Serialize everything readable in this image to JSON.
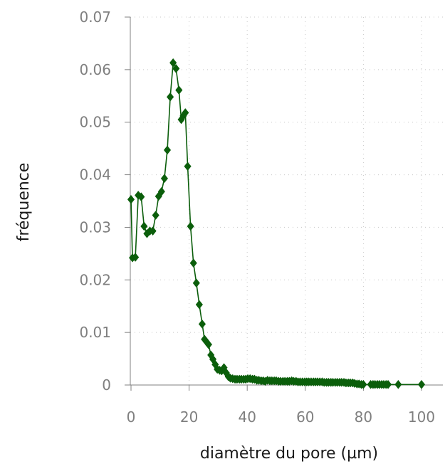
{
  "chart_data": {
    "type": "scatter",
    "title": "",
    "xlabel": "diamètre du pore (µm)",
    "ylabel": "fréquence",
    "xlim": [
      0,
      107
    ],
    "ylim": [
      0,
      0.07
    ],
    "x_ticks": [
      0,
      20,
      40,
      60,
      80,
      100
    ],
    "y_ticks": [
      0,
      0.01,
      0.02,
      0.03,
      0.04,
      0.05,
      0.06,
      0.07
    ],
    "x_tick_labels": [
      "0",
      "20",
      "40",
      "60",
      "80",
      "100"
    ],
    "y_tick_labels": [
      "0",
      "0.01",
      "0.02",
      "0.03",
      "0.04",
      "0.05",
      "0.06",
      "0.07"
    ],
    "grid": "dotted",
    "legend": "none",
    "series": [
      {
        "color": "#0b5e0b",
        "marker": "diamond",
        "line": true,
        "points": [
          [
            0,
            0.0353
          ],
          [
            0.5,
            0.0242
          ],
          [
            1.5,
            0.0243
          ],
          [
            2.5,
            0.0361
          ],
          [
            3.5,
            0.0358
          ],
          [
            4.5,
            0.0302
          ],
          [
            5.5,
            0.0288
          ],
          [
            6.5,
            0.0293
          ],
          [
            7.5,
            0.0293
          ],
          [
            8.5,
            0.0323
          ],
          [
            9.5,
            0.0359
          ],
          [
            10.5,
            0.0368
          ],
          [
            11.5,
            0.0393
          ],
          [
            12.5,
            0.0447
          ],
          [
            13.5,
            0.0548
          ],
          [
            14.5,
            0.0613
          ],
          [
            15.5,
            0.0602
          ],
          [
            16.5,
            0.0561
          ],
          [
            17.3,
            0.0505
          ],
          [
            18,
            0.0512
          ],
          [
            18.7,
            0.0518
          ],
          [
            19.5,
            0.0416
          ],
          [
            20.5,
            0.0302
          ],
          [
            21.5,
            0.0232
          ],
          [
            22.5,
            0.0194
          ],
          [
            23.5,
            0.0153
          ],
          [
            24.5,
            0.0116
          ],
          [
            25.3,
            0.0087
          ],
          [
            26,
            0.0082
          ],
          [
            26.7,
            0.0077
          ],
          [
            27.5,
            0.0057
          ],
          [
            28.2,
            0.0049
          ],
          [
            29,
            0.0039
          ],
          [
            29.7,
            0.003
          ],
          [
            30.5,
            0.0028
          ],
          [
            31.2,
            0.0027
          ],
          [
            32,
            0.0033
          ],
          [
            32.8,
            0.0023
          ],
          [
            33.5,
            0.0016
          ],
          [
            34.2,
            0.0013
          ],
          [
            35,
            0.0012
          ],
          [
            35.8,
            0.0011
          ],
          [
            36.5,
            0.0011
          ],
          [
            37.3,
            0.0011
          ],
          [
            38,
            0.0011
          ],
          [
            38.8,
            0.0011
          ],
          [
            39.5,
            0.0011
          ],
          [
            40.2,
            0.0012
          ],
          [
            41,
            0.0012
          ],
          [
            41.8,
            0.0011
          ],
          [
            42.5,
            0.0011
          ],
          [
            43.3,
            0.0009
          ],
          [
            44,
            0.0009
          ],
          [
            44.8,
            0.0008
          ],
          [
            45.5,
            0.0008
          ],
          [
            46.2,
            0.0007
          ],
          [
            47,
            0.0009
          ],
          [
            47.8,
            0.0008
          ],
          [
            48.5,
            0.0008
          ],
          [
            49.3,
            0.0008
          ],
          [
            50,
            0.0008
          ],
          [
            50.8,
            0.0007
          ],
          [
            51.5,
            0.0007
          ],
          [
            52.3,
            0.0007
          ],
          [
            53,
            0.0007
          ],
          [
            53.8,
            0.0007
          ],
          [
            54.5,
            0.0007
          ],
          [
            55.3,
            0.0008
          ],
          [
            56,
            0.0007
          ],
          [
            56.8,
            0.0007
          ],
          [
            57.5,
            0.0006
          ],
          [
            58.2,
            0.0006
          ],
          [
            59,
            0.0006
          ],
          [
            59.8,
            0.0006
          ],
          [
            60.5,
            0.0006
          ],
          [
            61.2,
            0.0006
          ],
          [
            62,
            0.0006
          ],
          [
            62.8,
            0.0006
          ],
          [
            63.5,
            0.0006
          ],
          [
            64.2,
            0.0006
          ],
          [
            65,
            0.0006
          ],
          [
            65.8,
            0.0006
          ],
          [
            66.5,
            0.0005
          ],
          [
            67.3,
            0.0005
          ],
          [
            68,
            0.0005
          ],
          [
            68.8,
            0.0005
          ],
          [
            69.5,
            0.0005
          ],
          [
            70.3,
            0.0005
          ],
          [
            71,
            0.0005
          ],
          [
            71.8,
            0.0005
          ],
          [
            72.5,
            0.0005
          ],
          [
            73.3,
            0.0005
          ],
          [
            74,
            0.0004
          ],
          [
            74.8,
            0.0004
          ],
          [
            75.5,
            0.0004
          ],
          [
            76.3,
            0.0004
          ],
          [
            77,
            0.0003
          ],
          [
            77.8,
            0.0002
          ],
          [
            78.5,
            0.0002
          ],
          [
            79.3,
            0.0001
          ],
          [
            80,
            0.0001
          ],
          [
            82.5,
            0.0001
          ],
          [
            83.3,
            0.0001
          ],
          [
            84,
            0.0001
          ],
          [
            84.8,
            0.0001
          ],
          [
            85.5,
            0.0001
          ],
          [
            86.3,
            0.0001
          ],
          [
            87,
            0.0001
          ],
          [
            87.8,
            0.0001
          ],
          [
            88.5,
            0.0001
          ],
          [
            92,
            0.0001
          ],
          [
            100,
            0.0001
          ]
        ]
      }
    ]
  }
}
